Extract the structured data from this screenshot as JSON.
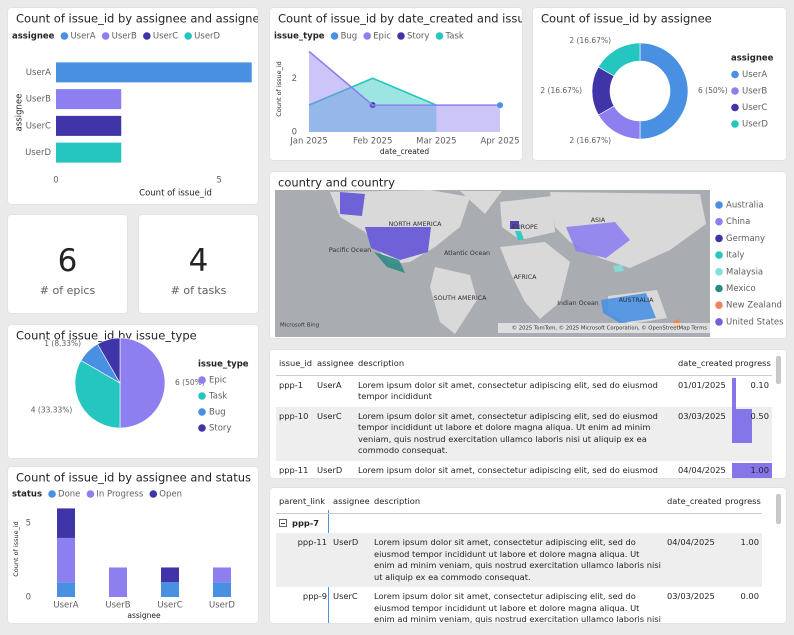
{
  "chart_data": [
    {
      "type": "hbar",
      "title": "Count of issue_id by assignee and assignee",
      "legend_title": "assignee",
      "categories": [
        "UserA",
        "UserB",
        "UserC",
        "UserD"
      ],
      "series": [
        {
          "name": "UserA",
          "color": "#4a90e2",
          "values": [
            6,
            null,
            null,
            null
          ]
        },
        {
          "name": "UserB",
          "color": "#8e7ff0",
          "values": [
            null,
            2,
            null,
            null
          ]
        },
        {
          "name": "UserC",
          "color": "#3f35a8",
          "values": [
            null,
            null,
            2,
            null
          ]
        },
        {
          "name": "UserD",
          "color": "#26c6c0",
          "values": [
            null,
            null,
            null,
            2
          ]
        }
      ],
      "xlabel": "Count of issue_id",
      "ylabel": "assignee",
      "xlim": [
        0,
        6.1
      ],
      "xticks": [
        0,
        5
      ]
    },
    {
      "type": "area",
      "title": "Count of issue_id by date_created and issue_type",
      "legend_title": "issue_type",
      "x": [
        "Jan 2025",
        "Feb 2025",
        "Mar 2025",
        "Apr 2025"
      ],
      "series": [
        {
          "name": "Bug",
          "color": "#4a90e2",
          "values": [
            null,
            null,
            null,
            1
          ]
        },
        {
          "name": "Epic",
          "color": "#8e7ff0",
          "values": [
            3,
            1,
            1,
            1
          ]
        },
        {
          "name": "Story",
          "color": "#3f35a8",
          "values": [
            null,
            1,
            null,
            null
          ]
        },
        {
          "name": "Task",
          "color": "#26c6c0",
          "values": [
            1,
            2,
            1,
            null
          ]
        }
      ],
      "xlabel": "date_created",
      "ylabel": "Count of issue_id",
      "ylim": [
        0,
        3.2
      ],
      "yticks": [
        0,
        2
      ]
    },
    {
      "type": "donut",
      "title": "Count of issue_id by assignee",
      "legend_title": "assignee",
      "categories": [
        "UserA",
        "UserB",
        "UserC",
        "UserD"
      ],
      "values": [
        6,
        2,
        2,
        2
      ],
      "value_labels": [
        "6 (50%)",
        "2 (16.67%)",
        "2 (16.67%)",
        "2 (16.67%)"
      ],
      "colors": [
        "#4a90e2",
        "#8e7ff0",
        "#3f35a8",
        "#26c6c0"
      ]
    },
    {
      "type": "pie",
      "title": "Count of issue_id by issue_type",
      "legend_title": "issue_type",
      "categories": [
        "Epic",
        "Task",
        "Bug",
        "Story"
      ],
      "values": [
        6,
        4,
        1,
        1
      ],
      "value_labels": [
        "6 (50%)",
        "4 (33.33%)",
        "1 (8.33%)",
        null
      ],
      "colors": [
        "#8e7ff0",
        "#26c6c0",
        "#4a90e2",
        "#3f35a8"
      ]
    },
    {
      "type": "map",
      "title": "country and country",
      "categories": [
        "Australia",
        "China",
        "Germany",
        "Italy",
        "Malaysia",
        "Mexico",
        "New Zealand",
        "United States"
      ],
      "colors": [
        "#4a90e2",
        "#8e7ff0",
        "#3f35a8",
        "#26c6c0",
        "#7fe0dc",
        "#2f8a86",
        "#e8875a",
        "#6f62d8"
      ],
      "labels": [
        "NORTH AMERICA",
        "EUROPE",
        "ASIA",
        "Pacific Ocean",
        "Atlantic Ocean",
        "AFRICA",
        "SOUTH AMERICA",
        "Indian Ocean",
        "AUSTRALIA"
      ],
      "attribution": "© 2025 TomTom, © 2025 Microsoft Corporation, © OpenStreetMap Terms",
      "logo": "Microsoft Bing"
    },
    {
      "type": "stacked_bar",
      "title": "Count of issue_id by assignee and status",
      "legend_title": "status",
      "categories": [
        "UserA",
        "UserB",
        "UserC",
        "UserD"
      ],
      "series": [
        {
          "name": "Done",
          "color": "#4a90e2",
          "values": [
            1,
            0,
            1,
            1
          ]
        },
        {
          "name": "In Progress",
          "color": "#8e7ff0",
          "values": [
            3,
            2,
            0,
            1
          ]
        },
        {
          "name": "Open",
          "color": "#3f35a8",
          "values": [
            2,
            0,
            1,
            0
          ]
        }
      ],
      "xlabel": "assignee",
      "ylabel": "Count of issue_id",
      "ylim": [
        0,
        6.5
      ],
      "yticks": [
        0,
        5
      ]
    }
  ],
  "cards": [
    {
      "value": 6,
      "label": "# of epics"
    },
    {
      "value": 4,
      "label": "# of tasks"
    }
  ],
  "tables": [
    {
      "columns": [
        "issue_id",
        "assignee",
        "description",
        "date_created",
        "progress"
      ],
      "rows": [
        [
          "ppp-1",
          "UserA",
          "Lorem ipsum dolor sit amet, consectetur adipiscing elit, sed do eiusmod tempor incididunt",
          "01/01/2025",
          {
            "value": 0.1,
            "label": "0.10"
          }
        ],
        [
          "ppp-10",
          "UserC",
          "Lorem ipsum dolor sit amet, consectetur adipiscing elit, sed do eiusmod tempor incididunt ut labore et dolore magna aliqua. Ut enim ad minim veniam, quis nostrud exercitation ullamco laboris nisi ut aliquip ex ea commodo consequat.",
          "03/03/2025",
          {
            "value": 0.5,
            "label": "0.50"
          }
        ],
        [
          "ppp-11",
          "UserD",
          "Lorem ipsum dolor sit amet, consectetur adipiscing elit, sed do eiusmod tempor incididunt ut labore et dolore magna aliqua. Ut enim ad minim veniam, quis nostrud exercitation ullamco laboris nisi ut aliquip ex ea commodo consequat.",
          "04/04/2025",
          {
            "value": 1,
            "label": "1.00"
          }
        ]
      ]
    },
    {
      "columns": [
        "parent_link",
        "assignee",
        "description",
        "date_created",
        "progress"
      ],
      "group": "ppp-7",
      "rows": [
        [
          "ppp-11",
          "UserD",
          "Lorem ipsum dolor sit amet, consectetur adipiscing elit, sed do eiusmod tempor incididunt ut labore et dolore magna aliqua. Ut enim ad minim veniam, quis nostrud exercitation ullamco laboris nisi ut aliquip ex ea commodo consequat.",
          "04/04/2025",
          {
            "value": 1,
            "label": "1.00"
          }
        ],
        [
          "ppp-9",
          "UserC",
          "Lorem ipsum dolor sit amet, consectetur adipiscing elit, sed do eiusmod tempor incididunt ut labore et dolore magna aliqua. Ut enim ad minim veniam, quis nostrud exercitation ullamco laboris nisi ut aliquip ex ea commodo consequat.",
          "03/03/2025",
          {
            "value": 0,
            "label": "0.00"
          }
        ]
      ]
    }
  ]
}
